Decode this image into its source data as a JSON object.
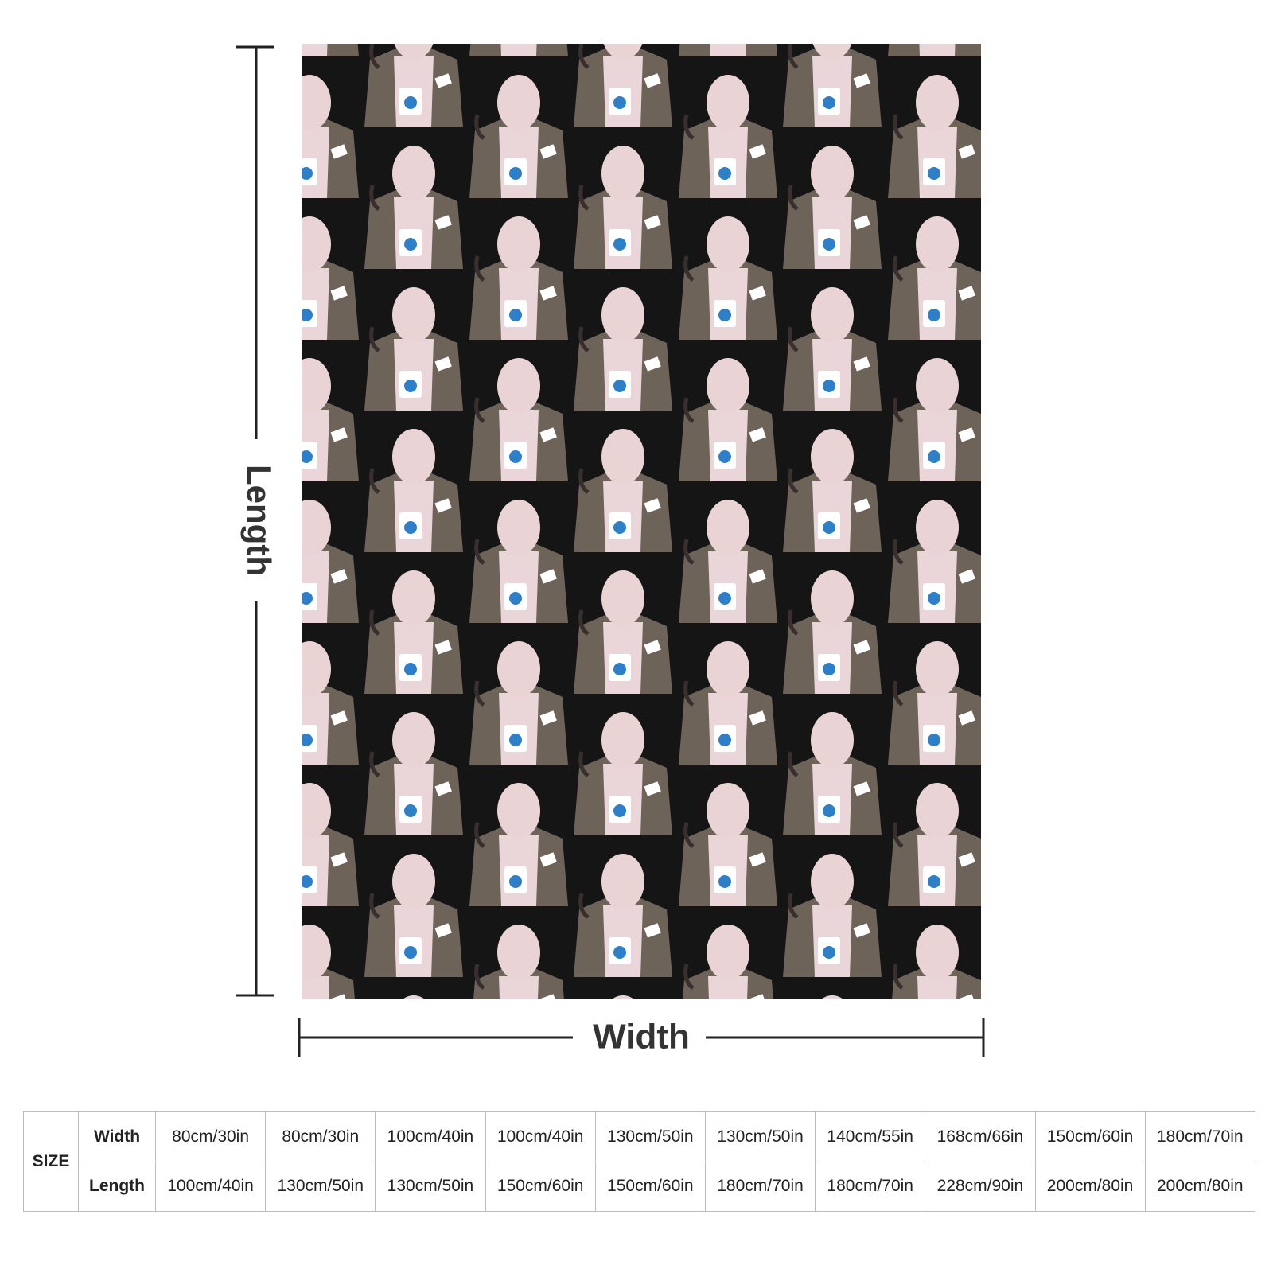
{
  "dimension_labels": {
    "length": "Length",
    "width": "Width"
  },
  "size_table": {
    "header": "SIZE",
    "rows": [
      {
        "label": "Width",
        "values": [
          "80cm/30in",
          "80cm/30in",
          "100cm/40in",
          "100cm/40in",
          "130cm/50in",
          "130cm/50in",
          "140cm/55in",
          "168cm/66in",
          "150cm/60in",
          "180cm/70in"
        ]
      },
      {
        "label": "Length",
        "values": [
          "100cm/40in",
          "130cm/50in",
          "130cm/50in",
          "150cm/60in",
          "150cm/60in",
          "180cm/70in",
          "180cm/70in",
          "228cm/90in",
          "200cm/80in",
          "200cm/80in"
        ]
      }
    ]
  }
}
